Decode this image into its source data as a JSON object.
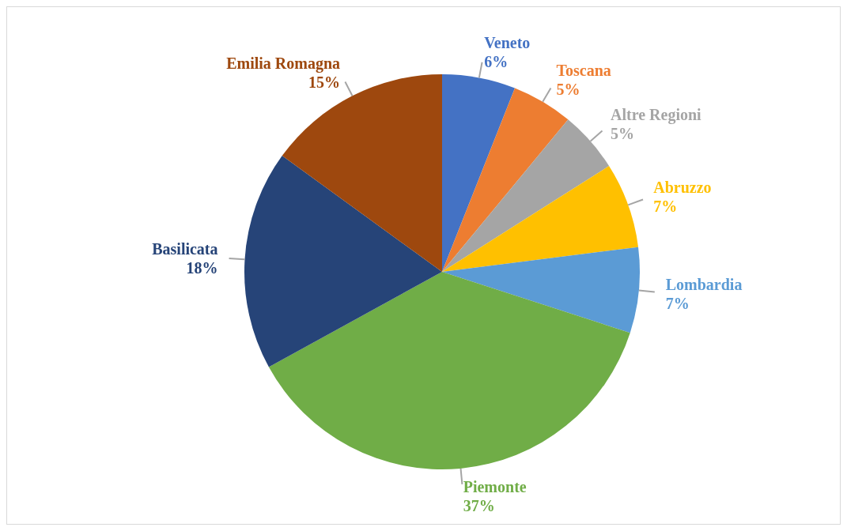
{
  "chart_data": {
    "type": "pie",
    "categories": [
      "Veneto",
      "Toscana",
      "Altre Regioni",
      "Abruzzo",
      "Lombardia",
      "Piemonte",
      "Basilicata",
      "Emilia Romagna"
    ],
    "values": [
      6,
      5,
      5,
      7,
      7,
      37,
      18,
      15
    ],
    "value_labels": [
      "6%",
      "5%",
      "5%",
      "7%",
      "7%",
      "37%",
      "18%",
      "15%"
    ],
    "colors": [
      "#4472c4",
      "#ed7d31",
      "#a5a5a5",
      "#ffc000",
      "#5b9bd5",
      "#70ad47",
      "#264478",
      "#9e480e"
    ],
    "legend": false
  }
}
